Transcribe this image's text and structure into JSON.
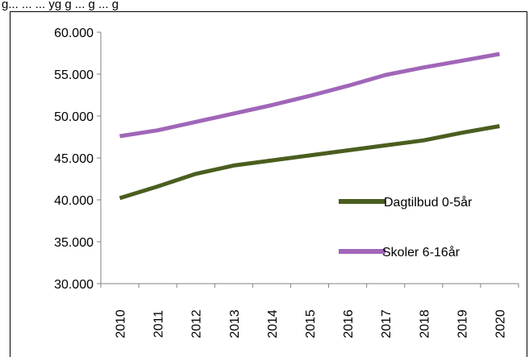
{
  "header_fragment": "g... ... ... yg g ... g ... g",
  "chart_data": {
    "type": "line",
    "categories": [
      "2010",
      "2011",
      "2012",
      "2013",
      "2014",
      "2015",
      "2016",
      "2017",
      "2018",
      "2019",
      "2020"
    ],
    "series": [
      {
        "name": "Dagtilbud 0-5år",
        "color": "#4a5e1f",
        "values": [
          40200,
          41600,
          43100,
          44100,
          44700,
          45300,
          45900,
          46500,
          47100,
          48000,
          48800
        ]
      },
      {
        "name": "Skoler 6-16år",
        "color": "#a066b8",
        "values": [
          47600,
          48300,
          49300,
          50300,
          51300,
          52400,
          53600,
          54900,
          55800,
          56600,
          57400
        ]
      }
    ],
    "yticks": [
      "30.000",
      "35.000",
      "40.000",
      "45.000",
      "50.000",
      "55.000",
      "60.000"
    ],
    "ylim": [
      30000,
      60000
    ],
    "ystep": 5000,
    "grid": false,
    "legend": "right, stacked, inside plot"
  }
}
